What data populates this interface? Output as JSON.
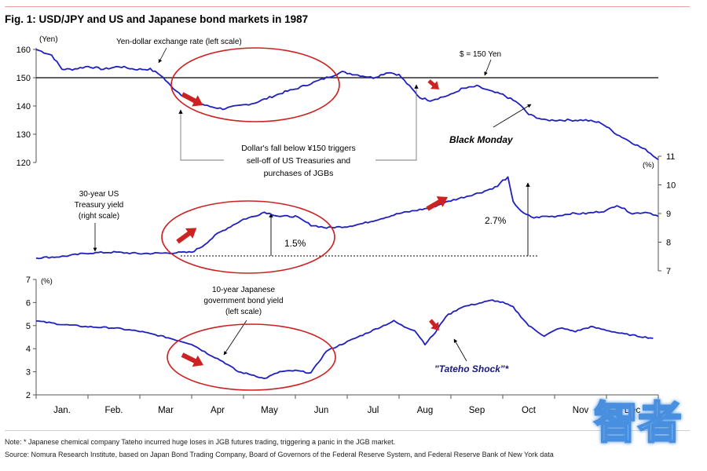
{
  "figure": {
    "title": "Fig. 1: USD/JPY and US and Japanese bond markets in 1987",
    "note": "Note: * Japanese chemical company Tateho incurred huge loses in JGB futures trading, triggering a panic in the JGB market.",
    "source": "Source: Nomura Research Institute, based on Japan Bond Trading Company, Board of Governors of the Federal Reserve System, and Federal Reserve Bank of New York data",
    "watermark": "智者"
  },
  "colors": {
    "series": "#1f1fbf",
    "highlight": "#cc2222",
    "axis": "#555555",
    "title_rule": "#e8a0a0"
  },
  "chart_data": [
    {
      "type": "line",
      "name": "Yen-dollar exchange rate",
      "unit_label": "(Yen)",
      "ylim": [
        120,
        160
      ],
      "yticks": [
        120,
        130,
        140,
        150,
        160
      ],
      "reference_line": {
        "value": 150,
        "label": "$ = 150 Yen"
      },
      "series_label": "Yen-dollar exchange rate (left scale)",
      "annotations": [
        "Dollar's fall below ¥150 triggers",
        "sell-off of US Treasuries and",
        "purchases of JGBs",
        "Black Monday"
      ],
      "x": [
        0,
        0.3,
        0.5,
        0.7,
        1.0,
        1.3,
        1.6,
        1.9,
        2.2,
        2.4,
        2.6,
        2.8,
        3.0,
        3.3,
        3.6,
        3.9,
        4.2,
        4.5,
        4.8,
        5.0,
        5.3,
        5.6,
        5.9,
        6.2,
        6.5,
        6.8,
        7.0,
        7.2,
        7.4,
        7.6,
        7.8,
        8.0,
        8.2,
        8.5,
        8.8,
        9.0,
        9.2,
        9.3,
        9.5,
        9.8,
        10.0,
        10.3,
        10.6,
        10.9,
        11.2,
        11.5,
        11.8,
        12.0
      ],
      "values": [
        160,
        158,
        153,
        153,
        154,
        153,
        154,
        153,
        153,
        151,
        147,
        144,
        142,
        140,
        139,
        140,
        141,
        143,
        145,
        146,
        148,
        150,
        152,
        151,
        150,
        152,
        151,
        147,
        143,
        142,
        143,
        144,
        146,
        147,
        145,
        144,
        142,
        141,
        137,
        135,
        135,
        135,
        135,
        134,
        130,
        127,
        124,
        121
      ]
    },
    {
      "type": "line",
      "name": "30-year US Treasury yield",
      "unit_label": "(%)",
      "ylim": [
        7,
        11
      ],
      "yticks": [
        7,
        8,
        9,
        10,
        11
      ],
      "series_label": [
        "30-year US",
        "Treasury yield",
        "(right scale)"
      ],
      "annotations": [
        "1.5%",
        "2.7%"
      ],
      "x": [
        0,
        0.5,
        1.0,
        1.5,
        2.0,
        2.5,
        3.0,
        3.2,
        3.5,
        3.8,
        4.0,
        4.2,
        4.4,
        4.7,
        5.0,
        5.3,
        5.6,
        6.0,
        6.3,
        6.6,
        7.0,
        7.3,
        7.6,
        8.0,
        8.3,
        8.6,
        8.9,
        9.0,
        9.1,
        9.2,
        9.4,
        9.6,
        9.8,
        10.0,
        10.3,
        10.6,
        11.0,
        11.2,
        11.5,
        11.8,
        12.0
      ],
      "values": [
        7.45,
        7.5,
        7.62,
        7.65,
        7.6,
        7.62,
        7.65,
        7.85,
        8.3,
        8.6,
        8.8,
        8.9,
        9.05,
        8.9,
        8.9,
        8.6,
        8.5,
        8.55,
        8.65,
        8.8,
        9.0,
        9.1,
        9.2,
        9.45,
        9.6,
        9.75,
        9.95,
        10.15,
        10.25,
        9.4,
        9.0,
        8.85,
        8.9,
        8.9,
        9.0,
        9.0,
        9.1,
        9.3,
        9.0,
        9.05,
        8.9
      ]
    },
    {
      "type": "line",
      "name": "10-year Japanese government bond yield",
      "unit_label": "(%)",
      "ylim": [
        2,
        7
      ],
      "yticks": [
        2,
        3,
        4,
        5,
        6,
        7
      ],
      "series_label": [
        "10-year Japanese",
        "government bond yield",
        "(left scale)"
      ],
      "annotations": [
        "\"Tateho Shock\"*"
      ],
      "categories": [
        "Jan.",
        "Feb.",
        "Mar",
        "Apr",
        "May",
        "Jun",
        "Jul",
        "Aug",
        "Sep",
        "Oct",
        "Nov",
        "Dec"
      ],
      "x": [
        0,
        0.5,
        1.0,
        1.5,
        2.0,
        2.5,
        3.0,
        3.3,
        3.6,
        3.9,
        4.2,
        4.4,
        4.7,
        5.0,
        5.3,
        5.6,
        6.0,
        6.5,
        6.9,
        7.1,
        7.3,
        7.5,
        7.7,
        7.9,
        8.2,
        8.5,
        8.8,
        9.0,
        9.2,
        9.5,
        9.8,
        10.1,
        10.4,
        10.7,
        11.0,
        11.3,
        11.6,
        11.9
      ],
      "values": [
        5.2,
        5.05,
        4.95,
        4.9,
        4.75,
        4.5,
        4.2,
        3.8,
        3.45,
        3.0,
        2.85,
        2.7,
        3.0,
        3.05,
        2.95,
        3.9,
        4.3,
        4.8,
        5.2,
        4.95,
        4.8,
        4.2,
        4.7,
        5.4,
        5.8,
        5.95,
        6.1,
        6.0,
        5.8,
        5.0,
        4.55,
        4.9,
        4.75,
        4.95,
        4.8,
        4.65,
        4.55,
        4.45
      ]
    }
  ]
}
